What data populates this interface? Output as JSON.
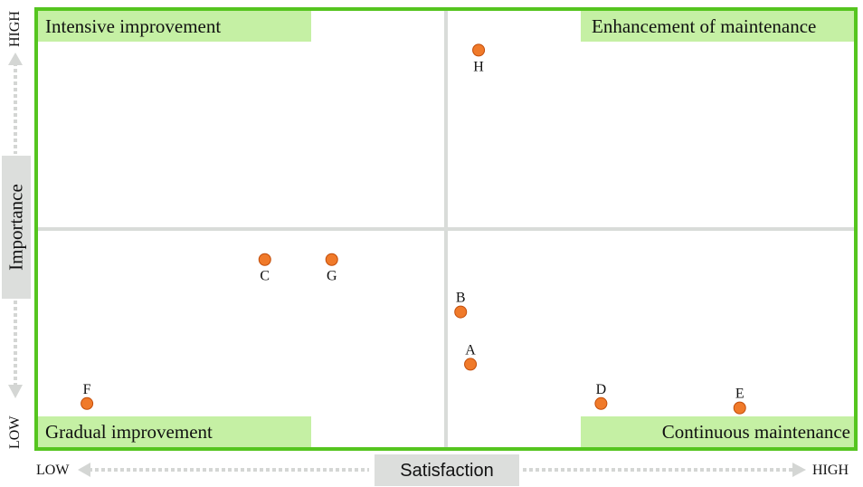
{
  "quadrants": {
    "top_left": "Intensive improvement",
    "top_right": "Enhancement of maintenance",
    "bottom_left": "Gradual improvement",
    "bottom_right": "Continuous maintenance"
  },
  "colors": {
    "frame": "#55c51f",
    "quadrant_label_bg": "#c5f0a4",
    "point_fill": "#f07a2a",
    "point_stroke": "#c24d0a",
    "divider": "#d9dcd9",
    "axis_arrow": "#d4d6d4",
    "axis_title_bg": "#dcdedc"
  },
  "chart_data": {
    "type": "scatter",
    "xlabel": "Satisfaction",
    "ylabel": "Importance",
    "x_low": "LOW",
    "x_high": "HIGH",
    "y_low": "LOW",
    "y_high": "HIGH",
    "xlim": [
      0,
      100
    ],
    "ylim": [
      0,
      100
    ],
    "divider_x": 50,
    "divider_y": 50,
    "points": [
      {
        "label": "A",
        "x": 53,
        "y": 19
      },
      {
        "label": "B",
        "x": 51.8,
        "y": 31
      },
      {
        "label": "C",
        "x": 27.8,
        "y": 43
      },
      {
        "label": "D",
        "x": 69,
        "y": 10
      },
      {
        "label": "E",
        "x": 86,
        "y": 9
      },
      {
        "label": "F",
        "x": 6,
        "y": 10
      },
      {
        "label": "G",
        "x": 36,
        "y": 43
      },
      {
        "label": "H",
        "x": 54,
        "y": 91
      }
    ]
  }
}
